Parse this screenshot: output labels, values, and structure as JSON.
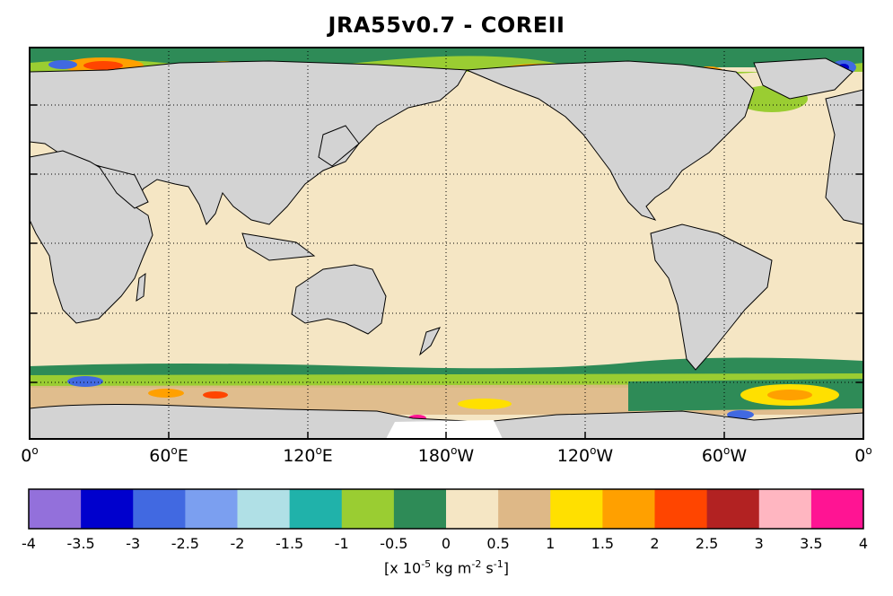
{
  "title": "JRA55v0.7 - COREII",
  "x_axis": {
    "ticks": [
      "0",
      "60",
      "120",
      "180",
      "120",
      "60",
      "0"
    ],
    "suffixes": [
      "",
      "E",
      "E",
      "W",
      "W",
      "W",
      ""
    ],
    "degree_symbol": "o"
  },
  "colorbar": {
    "ticks": [
      "-4",
      "-3.5",
      "-3",
      "-2.5",
      "-2",
      "-1.5",
      "-1",
      "-0.5",
      "0",
      "0.5",
      "1",
      "1.5",
      "2",
      "2.5",
      "3",
      "3.5",
      "4"
    ],
    "colors": [
      "#9370db",
      "#0000cd",
      "#4169e1",
      "#7b9ff0",
      "#b0e0e6",
      "#20b2aa",
      "#9acd32",
      "#2e8b57",
      "#f5e6c4",
      "#deb887",
      "#ffe000",
      "#ffa000",
      "#ff4500",
      "#b22222",
      "#ffb6c1",
      "#ff1493"
    ],
    "units_prefix": "[x 10",
    "units_exp1": "-5",
    "units_mid": " kg m",
    "units_exp2": "-2",
    "units_mid2": " s",
    "units_exp3": "-1",
    "units_suffix": "]"
  },
  "map_colors": {
    "ocean_background": "#f5e6c4",
    "land": "#d3d3d3",
    "coast": "#000000"
  }
}
